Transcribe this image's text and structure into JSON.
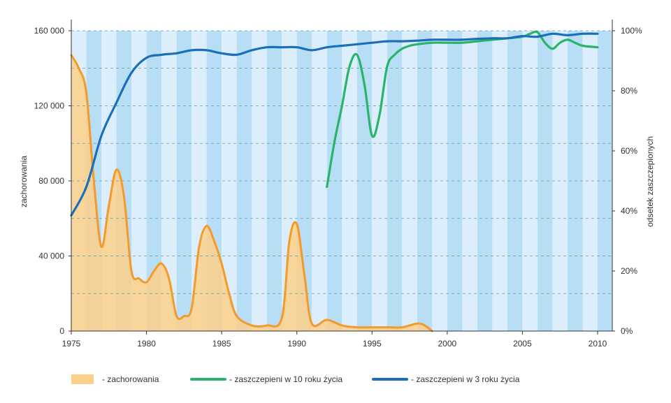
{
  "chart_data": {
    "type": "line",
    "x_range": [
      1975,
      2010
    ],
    "x_ticks": [
      "1975",
      "1980",
      "1985",
      "1990",
      "1995",
      "2000",
      "2005",
      "2010"
    ],
    "y_left": {
      "label": "zachorowania",
      "range": [
        0,
        160000
      ],
      "ticks": [
        {
          "value": 0,
          "label": "0"
        },
        {
          "value": 40000,
          "label": "40 000"
        },
        {
          "value": 80000,
          "label": "80 000"
        },
        {
          "value": 120000,
          "label": "120 000"
        },
        {
          "value": 160000,
          "label": "160 000"
        }
      ]
    },
    "y_right": {
      "label": "odsetek zaszczepionych",
      "range": [
        0,
        100
      ],
      "ticks": [
        {
          "value": 0,
          "label": "0%"
        },
        {
          "value": 20,
          "label": "20%"
        },
        {
          "value": 40,
          "label": "40%"
        },
        {
          "value": 60,
          "label": "60%"
        },
        {
          "value": 80,
          "label": "80%"
        },
        {
          "value": 100,
          "label": "100%"
        }
      ]
    },
    "series": [
      {
        "name": "- zachorowania",
        "axis": "left",
        "kind": "area",
        "color": "#f39a2b",
        "fill": "#fbd08a",
        "points": [
          [
            1975,
            147000
          ],
          [
            1975.5,
            140000
          ],
          [
            1976,
            127000
          ],
          [
            1976.5,
            80000
          ],
          [
            1977,
            45000
          ],
          [
            1977.5,
            67000
          ],
          [
            1978,
            86000
          ],
          [
            1978.5,
            72000
          ],
          [
            1979,
            32000
          ],
          [
            1979.5,
            28000
          ],
          [
            1980,
            26000
          ],
          [
            1980.5,
            32000
          ],
          [
            1981,
            36000
          ],
          [
            1981.5,
            28000
          ],
          [
            1982,
            8000
          ],
          [
            1982.5,
            8000
          ],
          [
            1983,
            12000
          ],
          [
            1983.5,
            45000
          ],
          [
            1984,
            56000
          ],
          [
            1984.5,
            48000
          ],
          [
            1985,
            36000
          ],
          [
            1985.5,
            20000
          ],
          [
            1986,
            8000
          ],
          [
            1987,
            3000
          ],
          [
            1988,
            3000
          ],
          [
            1989,
            7000
          ],
          [
            1989.5,
            48000
          ],
          [
            1990,
            57000
          ],
          [
            1990.5,
            30000
          ],
          [
            1991,
            4000
          ],
          [
            1992,
            6000
          ],
          [
            1993,
            3000
          ],
          [
            1994,
            2000
          ],
          [
            1995,
            2000
          ],
          [
            1996,
            2000
          ],
          [
            1997,
            2000
          ],
          [
            1998,
            4000
          ],
          [
            1998.5,
            3000
          ],
          [
            1999,
            0
          ]
        ]
      },
      {
        "name": "- zaszczepieni w 10 roku życia",
        "axis": "right",
        "kind": "line",
        "color": "#2ab36a",
        "points": [
          [
            1992,
            48
          ],
          [
            1992.5,
            63
          ],
          [
            1993,
            75
          ],
          [
            1993.5,
            88
          ],
          [
            1994,
            92
          ],
          [
            1994.5,
            82
          ],
          [
            1995,
            65
          ],
          [
            1995.5,
            72
          ],
          [
            1996,
            88
          ],
          [
            1996.5,
            92
          ],
          [
            1997,
            94
          ],
          [
            1997.5,
            95
          ],
          [
            1998,
            95.5
          ],
          [
            1999,
            96
          ],
          [
            2000,
            96
          ],
          [
            2001,
            96
          ],
          [
            2002,
            96.5
          ],
          [
            2003,
            97
          ],
          [
            2004,
            97.5
          ],
          [
            2005,
            98
          ],
          [
            2005.5,
            99
          ],
          [
            2006,
            99.5
          ],
          [
            2006.5,
            96
          ],
          [
            2007,
            94
          ],
          [
            2007.5,
            96
          ],
          [
            2008,
            97
          ],
          [
            2008.5,
            96
          ],
          [
            2009,
            95
          ],
          [
            2010,
            94.5
          ]
        ]
      },
      {
        "name": "- zaszczepieni w 3 roku życia",
        "axis": "right",
        "kind": "line",
        "color": "#1a6fba",
        "points": [
          [
            1975,
            38.5
          ],
          [
            1976,
            48
          ],
          [
            1977,
            65
          ],
          [
            1978,
            76
          ],
          [
            1979,
            86
          ],
          [
            1980,
            91
          ],
          [
            1981,
            92
          ],
          [
            1982,
            92.5
          ],
          [
            1983,
            93.5
          ],
          [
            1984,
            93.5
          ],
          [
            1985,
            92.5
          ],
          [
            1986,
            92
          ],
          [
            1987,
            93.5
          ],
          [
            1988,
            94.5
          ],
          [
            1989,
            94.5
          ],
          [
            1990,
            94.5
          ],
          [
            1991,
            93.5
          ],
          [
            1992,
            94.5
          ],
          [
            1993,
            95
          ],
          [
            1994,
            95.5
          ],
          [
            1995,
            96
          ],
          [
            1996,
            96.5
          ],
          [
            1997,
            96.5
          ],
          [
            1998,
            96.7
          ],
          [
            1999,
            97
          ],
          [
            2000,
            97
          ],
          [
            2001,
            97
          ],
          [
            2002,
            97.3
          ],
          [
            2003,
            97.5
          ],
          [
            2004,
            97.5
          ],
          [
            2005,
            98.2
          ],
          [
            2006,
            98
          ],
          [
            2007,
            99
          ],
          [
            2008,
            98.5
          ],
          [
            2009,
            99
          ],
          [
            2010,
            99
          ]
        ]
      }
    ],
    "grid": true,
    "legend_position": "bottom"
  },
  "colors": {
    "stripe_light": "#dceefb",
    "stripe_dark": "#b8def5",
    "grid_line": "#5aa0a8",
    "axis": "#333333"
  }
}
